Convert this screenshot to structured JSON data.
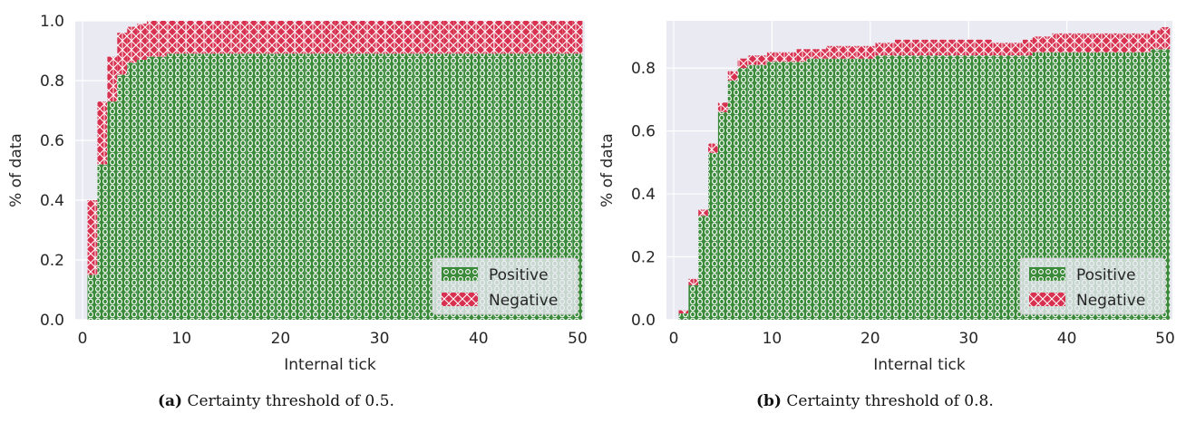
{
  "colors": {
    "positive": "#3a8a3a",
    "negative": "#d8304f",
    "plot_bg": "#eaeaf2",
    "grid": "#ffffff"
  },
  "legend": {
    "positive": "Positive",
    "negative": "Negative"
  },
  "chart_data": [
    {
      "type": "area",
      "stacked": true,
      "panel": "a",
      "caption_label": "(a)",
      "caption_text": "Certainty threshold of 0.5.",
      "xlabel": "Internal tick",
      "ylabel": "% of data",
      "xlim": [
        0,
        50
      ],
      "ylim": [
        0,
        1.0
      ],
      "xticks": [
        0,
        10,
        20,
        30,
        40,
        50
      ],
      "yticks": [
        0.0,
        0.2,
        0.4,
        0.6,
        0.8,
        1.0
      ],
      "xtick_labels": [
        "0",
        "10",
        "20",
        "30",
        "40",
        "50"
      ],
      "ytick_labels": [
        "0.0",
        "0.2",
        "0.4",
        "0.6",
        "0.8",
        "1.0"
      ],
      "legend_position": "bottom-right",
      "x": [
        1,
        2,
        3,
        4,
        5,
        6,
        7,
        8,
        9,
        10,
        11,
        12,
        13,
        14,
        15,
        16,
        17,
        18,
        19,
        20,
        21,
        22,
        23,
        24,
        25,
        26,
        27,
        28,
        29,
        30,
        31,
        32,
        33,
        34,
        35,
        36,
        37,
        38,
        39,
        40,
        41,
        42,
        43,
        44,
        45,
        46,
        47,
        48,
        49,
        50
      ],
      "series": [
        {
          "name": "Positive",
          "values": [
            0.15,
            0.52,
            0.73,
            0.82,
            0.86,
            0.87,
            0.88,
            0.88,
            0.89,
            0.89,
            0.89,
            0.89,
            0.89,
            0.89,
            0.89,
            0.89,
            0.89,
            0.89,
            0.89,
            0.89,
            0.89,
            0.89,
            0.89,
            0.89,
            0.89,
            0.89,
            0.89,
            0.89,
            0.89,
            0.89,
            0.89,
            0.89,
            0.89,
            0.89,
            0.89,
            0.89,
            0.89,
            0.89,
            0.89,
            0.89,
            0.89,
            0.89,
            0.89,
            0.89,
            0.89,
            0.89,
            0.89,
            0.89,
            0.89,
            0.89
          ]
        },
        {
          "name": "Negative",
          "values": [
            0.25,
            0.21,
            0.15,
            0.14,
            0.12,
            0.12,
            0.12,
            0.12,
            0.11,
            0.11,
            0.11,
            0.11,
            0.11,
            0.11,
            0.11,
            0.11,
            0.11,
            0.11,
            0.11,
            0.11,
            0.11,
            0.11,
            0.11,
            0.11,
            0.11,
            0.11,
            0.11,
            0.11,
            0.11,
            0.11,
            0.11,
            0.11,
            0.11,
            0.11,
            0.11,
            0.11,
            0.11,
            0.11,
            0.11,
            0.11,
            0.11,
            0.11,
            0.11,
            0.11,
            0.11,
            0.11,
            0.11,
            0.11,
            0.11,
            0.11
          ]
        }
      ]
    },
    {
      "type": "area",
      "stacked": true,
      "panel": "b",
      "caption_label": "(b)",
      "caption_text": "Certainty threshold of 0.8.",
      "xlabel": "Internal tick",
      "ylabel": "% of data",
      "xlim": [
        0,
        50
      ],
      "ylim": [
        0,
        0.95
      ],
      "xticks": [
        0,
        10,
        20,
        30,
        40,
        50
      ],
      "yticks": [
        0.0,
        0.2,
        0.4,
        0.6,
        0.8
      ],
      "xtick_labels": [
        "0",
        "10",
        "20",
        "30",
        "40",
        "50"
      ],
      "ytick_labels": [
        "0.0",
        "0.2",
        "0.4",
        "0.6",
        "0.8"
      ],
      "legend_position": "bottom-right",
      "x": [
        1,
        2,
        3,
        4,
        5,
        6,
        7,
        8,
        9,
        10,
        11,
        12,
        13,
        14,
        15,
        16,
        17,
        18,
        19,
        20,
        21,
        22,
        23,
        24,
        25,
        26,
        27,
        28,
        29,
        30,
        31,
        32,
        33,
        34,
        35,
        36,
        37,
        38,
        39,
        40,
        41,
        42,
        43,
        44,
        45,
        46,
        47,
        48,
        49,
        50
      ],
      "series": [
        {
          "name": "Positive",
          "values": [
            0.02,
            0.11,
            0.33,
            0.53,
            0.66,
            0.76,
            0.8,
            0.81,
            0.81,
            0.82,
            0.82,
            0.82,
            0.82,
            0.83,
            0.83,
            0.83,
            0.83,
            0.83,
            0.83,
            0.83,
            0.84,
            0.84,
            0.84,
            0.84,
            0.84,
            0.84,
            0.84,
            0.84,
            0.84,
            0.84,
            0.84,
            0.84,
            0.84,
            0.84,
            0.84,
            0.84,
            0.85,
            0.85,
            0.85,
            0.85,
            0.85,
            0.85,
            0.85,
            0.85,
            0.85,
            0.85,
            0.85,
            0.85,
            0.86,
            0.86
          ]
        },
        {
          "name": "Negative",
          "values": [
            0.01,
            0.02,
            0.02,
            0.03,
            0.03,
            0.03,
            0.03,
            0.03,
            0.03,
            0.03,
            0.03,
            0.03,
            0.04,
            0.03,
            0.03,
            0.04,
            0.04,
            0.04,
            0.04,
            0.04,
            0.04,
            0.04,
            0.05,
            0.05,
            0.05,
            0.05,
            0.05,
            0.05,
            0.05,
            0.05,
            0.05,
            0.05,
            0.04,
            0.04,
            0.04,
            0.05,
            0.05,
            0.05,
            0.06,
            0.06,
            0.06,
            0.06,
            0.06,
            0.06,
            0.06,
            0.06,
            0.06,
            0.06,
            0.06,
            0.07
          ]
        }
      ]
    }
  ]
}
